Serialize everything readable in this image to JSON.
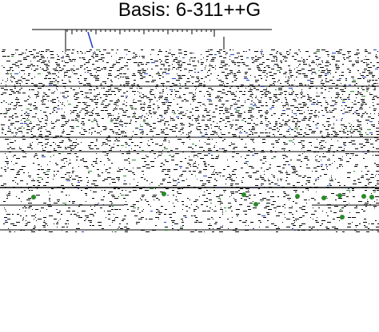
{
  "title": "Basis: 6-311++G",
  "colors": {
    "ink": "#000000",
    "noise_blue": "#1f3fbf",
    "noise_green": "#2a8a2a",
    "background": "#ffffff"
  }
}
